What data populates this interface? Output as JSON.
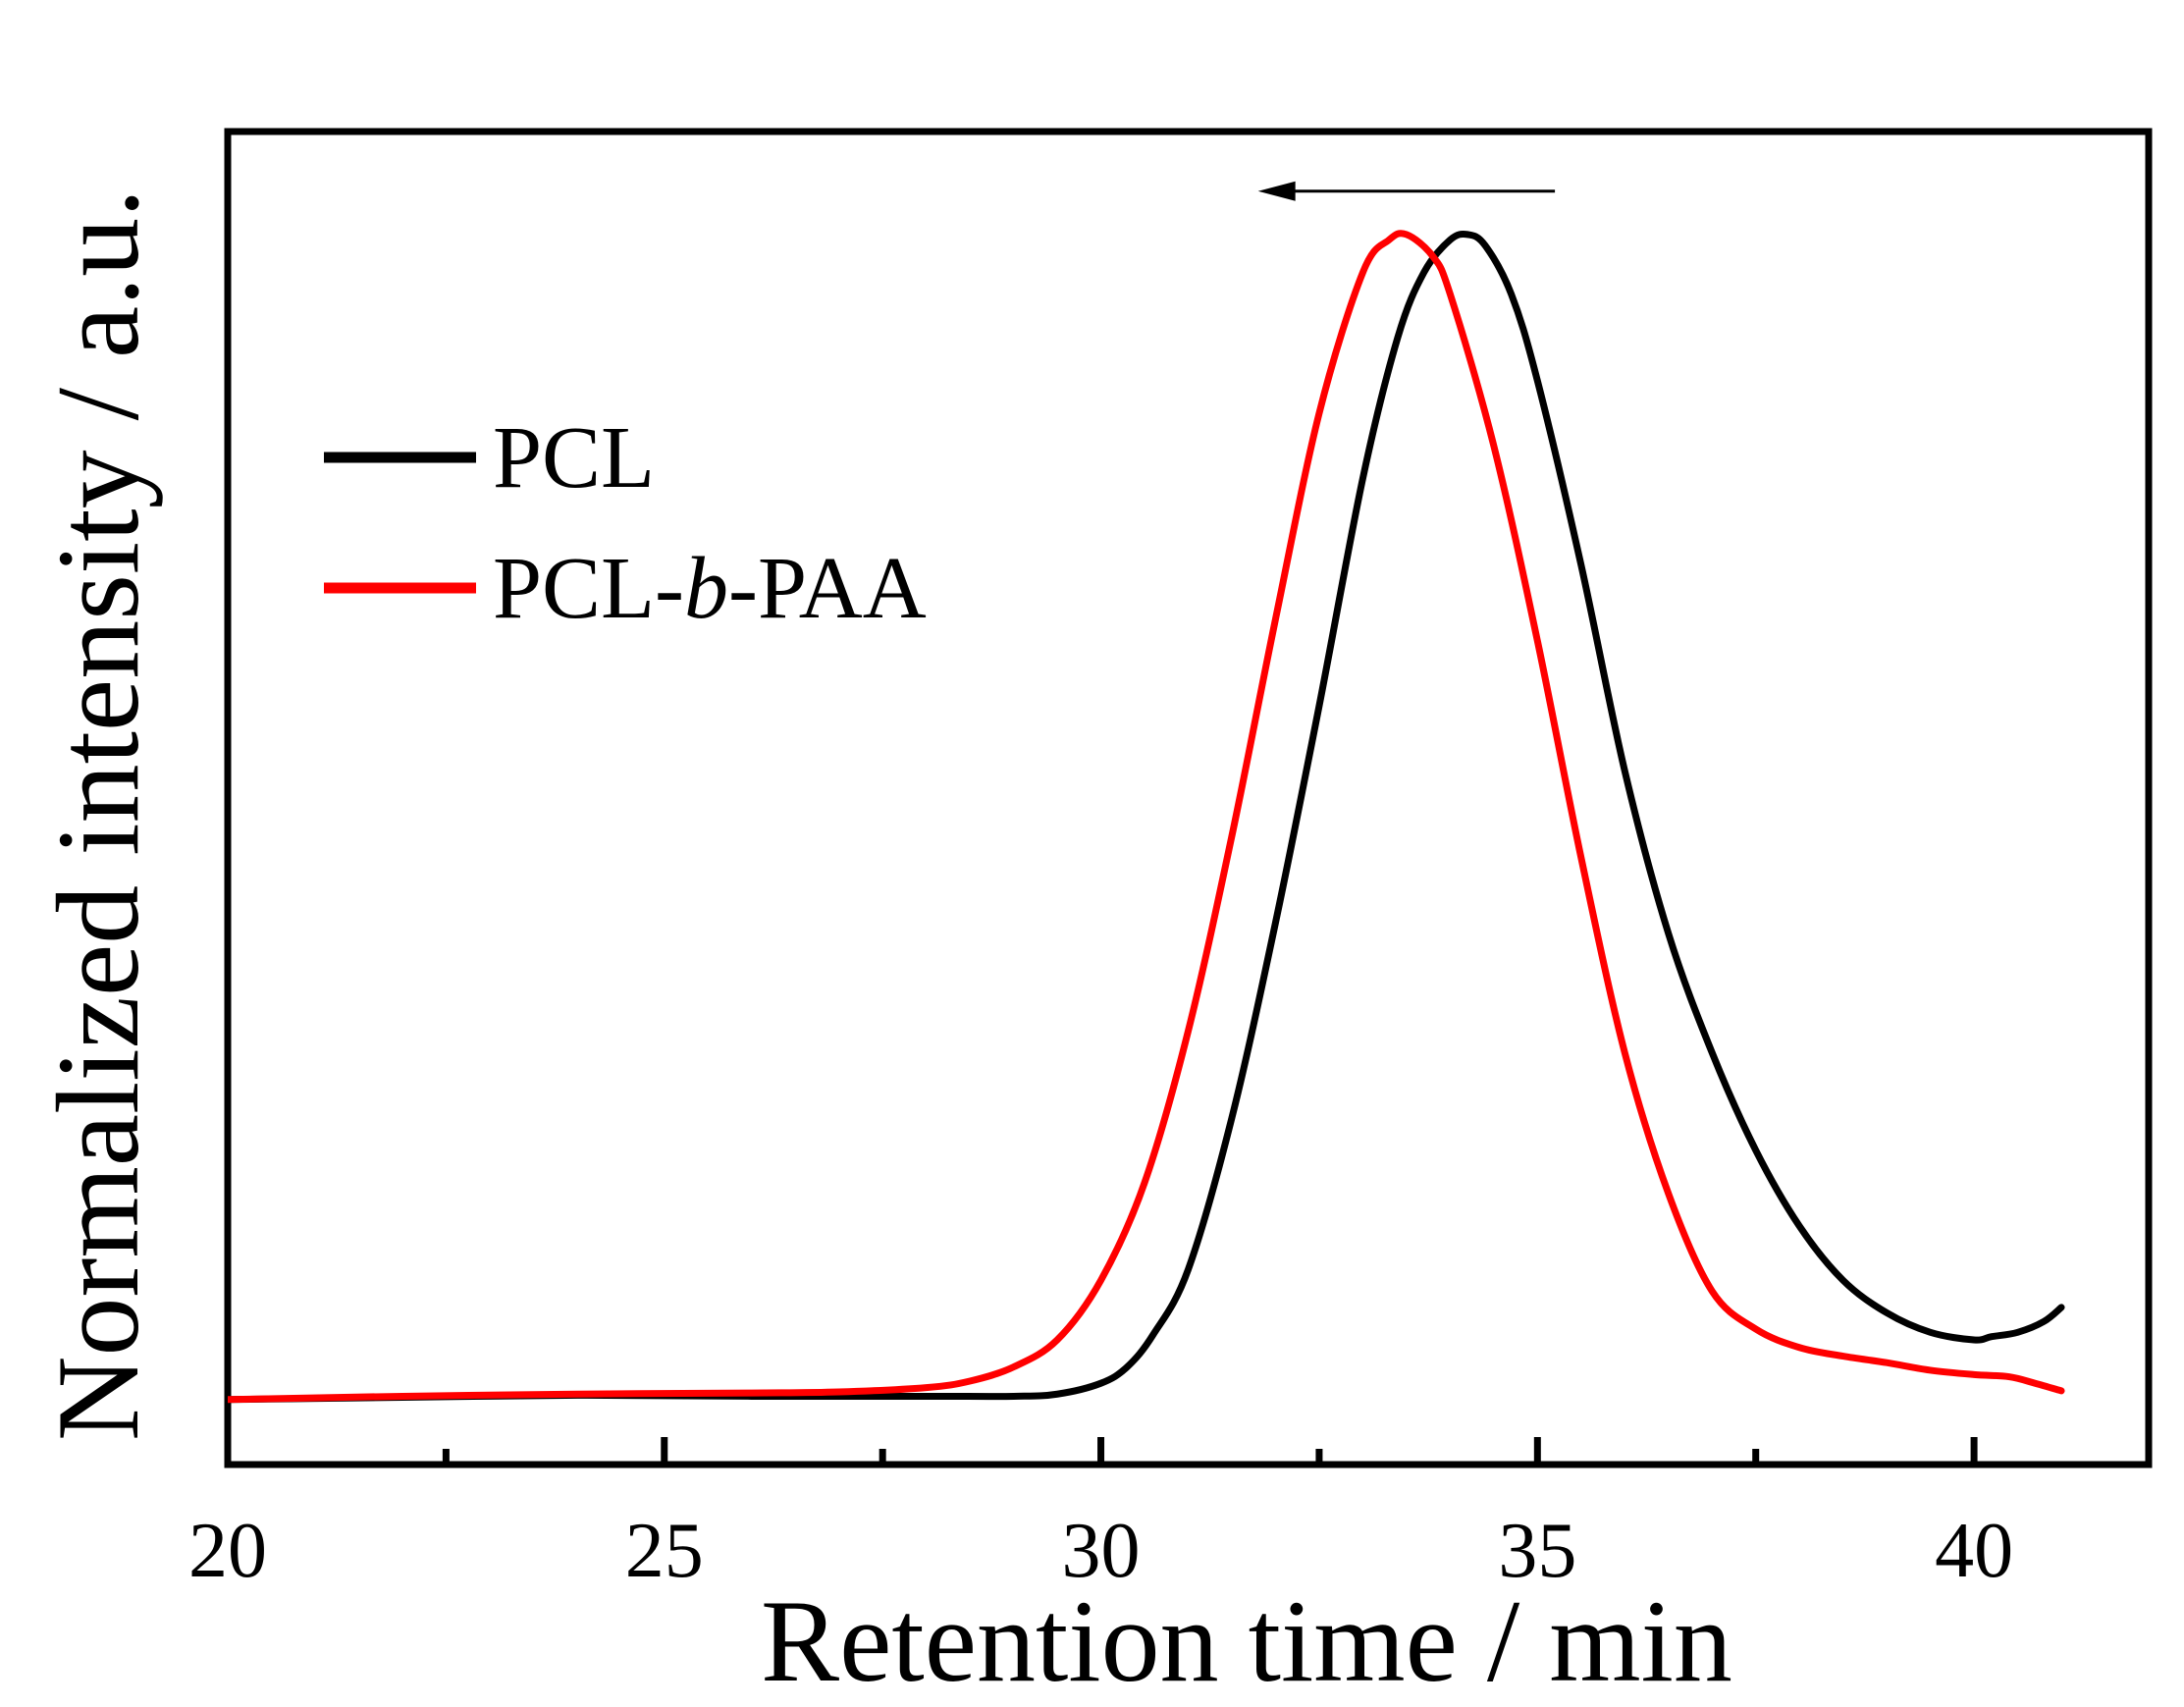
{
  "chart_data": {
    "type": "line",
    "title": "",
    "xlabel": "Retention time / min",
    "ylabel": "Normalized intensity / a.u.",
    "xlim": [
      20,
      42
    ],
    "ylim": [
      -0.06,
      1.17
    ],
    "xticks": [
      20,
      25,
      30,
      35,
      40
    ],
    "xtick_labels": [
      "20",
      "25",
      "30",
      "35",
      "40"
    ],
    "minor_xticks": [
      22.5,
      27.5,
      32.5,
      37.5
    ],
    "yticks_shown": false,
    "legend_position": "upper-left",
    "annotations": [
      {
        "type": "arrow",
        "direction": "left",
        "from": [
          35.2,
          1.115
        ],
        "to": [
          31.8,
          1.115
        ],
        "meaning": "shift to shorter retention time"
      }
    ],
    "series": [
      {
        "name": "PCL",
        "color": "#000000",
        "x": [
          20,
          22,
          24,
          26,
          28,
          29,
          29.5,
          30,
          30.3,
          30.6,
          31,
          31.5,
          32,
          32.5,
          33,
          33.4,
          33.7,
          34,
          34.2,
          34.4,
          34.7,
          35,
          35.5,
          36,
          36.5,
          37,
          37.5,
          38,
          38.5,
          39,
          39.5,
          40,
          40.2,
          40.5,
          40.8,
          41
        ],
        "y": [
          0.0,
          0.002,
          0.004,
          0.003,
          0.003,
          0.003,
          0.005,
          0.015,
          0.03,
          0.06,
          0.12,
          0.26,
          0.44,
          0.64,
          0.85,
          0.98,
          1.04,
          1.07,
          1.075,
          1.065,
          1.02,
          0.94,
          0.77,
          0.58,
          0.43,
          0.32,
          0.23,
          0.16,
          0.11,
          0.08,
          0.062,
          0.055,
          0.058,
          0.062,
          0.072,
          0.085
        ]
      },
      {
        "name": "PCL-b-PAA",
        "color": "#ff0000",
        "x": [
          20,
          22,
          24,
          26,
          27,
          28,
          28.5,
          29,
          29.5,
          30,
          30.5,
          31,
          31.5,
          32,
          32.5,
          33,
          33.3,
          33.5,
          33.8,
          34,
          34.5,
          35,
          35.5,
          36,
          36.5,
          37,
          37.5,
          38,
          38.5,
          39,
          39.5,
          40,
          40.4,
          40.7,
          41
        ],
        "y": [
          0.0,
          0.003,
          0.005,
          0.006,
          0.007,
          0.011,
          0.017,
          0.03,
          0.055,
          0.11,
          0.2,
          0.34,
          0.52,
          0.72,
          0.91,
          1.04,
          1.07,
          1.075,
          1.055,
          1.02,
          0.88,
          0.7,
          0.5,
          0.32,
          0.19,
          0.1,
          0.065,
          0.048,
          0.04,
          0.034,
          0.027,
          0.023,
          0.021,
          0.015,
          0.008
        ]
      }
    ]
  }
}
